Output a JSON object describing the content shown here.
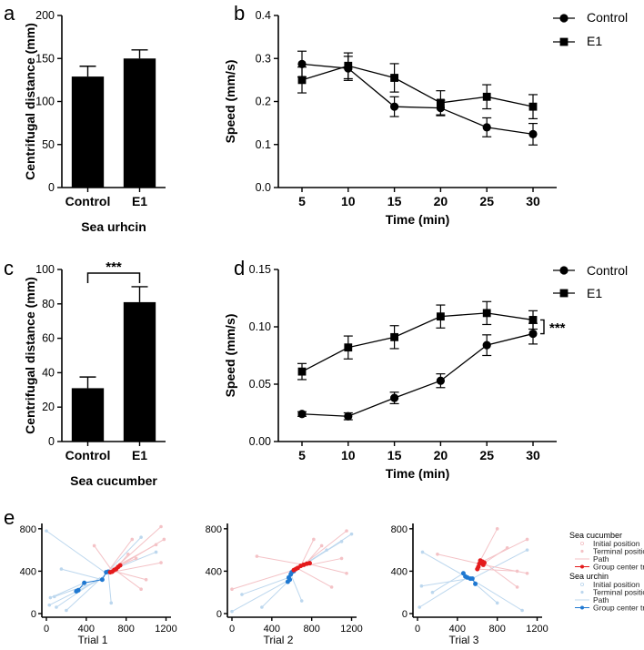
{
  "chart_data": [
    {
      "panel": "a",
      "type": "bar",
      "categories": [
        "Control",
        "E1"
      ],
      "values": [
        129,
        150
      ],
      "errors": [
        12,
        10
      ],
      "xlabel": "Sea urhcin",
      "ylabel": "Centrifugal distance (mm)",
      "ylim": [
        0,
        200
      ],
      "yticks": [
        "0",
        "50",
        "100",
        "150",
        "200"
      ],
      "color": "#000000"
    },
    {
      "panel": "b",
      "type": "line",
      "x": [
        5,
        10,
        15,
        20,
        25,
        30
      ],
      "xticks": [
        "5",
        "10",
        "15",
        "20",
        "25",
        "30"
      ],
      "series": [
        {
          "name": "Control",
          "marker": "circle",
          "values": [
            0.287,
            0.277,
            0.188,
            0.185,
            0.14,
            0.124
          ],
          "errors": [
            0.03,
            0.028,
            0.023,
            0.018,
            0.022,
            0.025
          ]
        },
        {
          "name": "E1",
          "marker": "square",
          "values": [
            0.25,
            0.283,
            0.255,
            0.197,
            0.211,
            0.188
          ],
          "errors": [
            0.03,
            0.03,
            0.033,
            0.028,
            0.028,
            0.028
          ]
        }
      ],
      "xlabel": "Time (min)",
      "ylabel": "Speed (mm/s)",
      "ylim": [
        0,
        0.4
      ],
      "yticks": [
        "0.0",
        "0.1",
        "0.2",
        "0.3",
        "0.4"
      ],
      "legend": "top-right"
    },
    {
      "panel": "c",
      "type": "bar",
      "categories": [
        "Control",
        "E1"
      ],
      "values": [
        31,
        81
      ],
      "errors": [
        6.5,
        9
      ],
      "xlabel": "Sea cucumber",
      "ylabel": "Centrifugal distance (mm)",
      "ylim": [
        0,
        100
      ],
      "yticks": [
        "0",
        "20",
        "40",
        "60",
        "80",
        "100"
      ],
      "significance": "***",
      "color": "#000000"
    },
    {
      "panel": "d",
      "type": "line",
      "x": [
        5,
        10,
        15,
        20,
        25,
        30
      ],
      "xticks": [
        "5",
        "10",
        "15",
        "20",
        "25",
        "30"
      ],
      "series": [
        {
          "name": "Control",
          "marker": "circle",
          "values": [
            0.024,
            0.022,
            0.038,
            0.053,
            0.084,
            0.094
          ],
          "errors": [
            0.002,
            0.003,
            0.005,
            0.006,
            0.009,
            0.009
          ]
        },
        {
          "name": "E1",
          "marker": "square",
          "values": [
            0.061,
            0.082,
            0.091,
            0.109,
            0.112,
            0.106
          ],
          "errors": [
            0.007,
            0.01,
            0.01,
            0.01,
            0.01,
            0.008
          ]
        }
      ],
      "xlabel": "Time (min)",
      "ylabel": "Speed (mm/s)",
      "ylim": [
        0,
        0.15
      ],
      "yticks": [
        "0.00",
        "0.05",
        "0.10",
        "0.15"
      ],
      "significance": "***",
      "legend": "top-right"
    },
    {
      "panel": "e",
      "type": "scatter",
      "xlim": [
        0,
        1250
      ],
      "ylim": [
        0,
        850
      ],
      "xticks": [
        "0",
        "400",
        "800",
        "1200"
      ],
      "yticks": [
        "0",
        "400",
        "800"
      ],
      "colors": {
        "sea_cucumber": "#e41a1c",
        "sea_urchin": "#1f78d1",
        "cucumber_faint": "#f4c2c6",
        "urchin_faint": "#bcd7ee"
      },
      "trials": [
        {
          "title": "Trial 1",
          "cucumber_trace": [
            [
              640,
              390
            ],
            [
              660,
              395
            ],
            [
              680,
              410
            ],
            [
              700,
              420
            ],
            [
              720,
              440
            ],
            [
              740,
              455
            ]
          ],
          "urchin_trace": [
            [
              300,
              210
            ],
            [
              320,
              220
            ],
            [
              380,
              290
            ],
            [
              560,
              320
            ],
            [
              600,
              390
            ],
            [
              620,
              395
            ]
          ],
          "cucumber_paths": [
            [
              [
                700,
                430
              ],
              [
                1180,
                700
              ]
            ],
            [
              [
                650,
                420
              ],
              [
                1100,
                650
              ]
            ],
            [
              [
                690,
                410
              ],
              [
                950,
                230
              ]
            ],
            [
              [
                600,
                380
              ],
              [
                1150,
                480
              ]
            ],
            [
              [
                640,
                430
              ],
              [
                480,
                640
              ]
            ],
            [
              [
                720,
                450
              ],
              [
                820,
                560
              ]
            ],
            [
              [
                680,
                400
              ],
              [
                1000,
                320
              ]
            ],
            [
              [
                700,
                440
              ],
              [
                1150,
                820
              ]
            ],
            [
              [
                660,
                420
              ],
              [
                900,
                520
              ]
            ],
            [
              [
                620,
                400
              ],
              [
                860,
                700
              ]
            ]
          ],
          "urchin_paths": [
            [
              [
                560,
                330
              ],
              [
                30,
                80
              ]
            ],
            [
              [
                600,
                380
              ],
              [
                0,
                780
              ]
            ],
            [
              [
                500,
                300
              ],
              [
                80,
                160
              ]
            ],
            [
              [
                580,
                360
              ],
              [
                200,
                30
              ]
            ],
            [
              [
                600,
                390
              ],
              [
                1100,
                580
              ]
            ],
            [
              [
                620,
                395
              ],
              [
                650,
                100
              ]
            ],
            [
              [
                380,
                290
              ],
              [
                40,
                150
              ]
            ],
            [
              [
                560,
                320
              ],
              [
                150,
                420
              ]
            ],
            [
              [
                590,
                370
              ],
              [
                950,
                720
              ]
            ],
            [
              [
                540,
                340
              ],
              [
                100,
                60
              ]
            ]
          ]
        },
        {
          "title": "Trial 2",
          "cucumber_trace": [
            [
              620,
              410
            ],
            [
              640,
              420
            ],
            [
              660,
              430
            ],
            [
              690,
              450
            ],
            [
              720,
              460
            ],
            [
              750,
              470
            ],
            [
              780,
              475
            ]
          ],
          "urchin_trace": [
            [
              560,
              300
            ],
            [
              580,
              320
            ],
            [
              570,
              340
            ],
            [
              590,
              370
            ],
            [
              600,
              390
            ],
            [
              620,
              400
            ]
          ],
          "cucumber_paths": [
            [
              [
                700,
                450
              ],
              [
                1150,
                780
              ]
            ],
            [
              [
                650,
                430
              ],
              [
                1000,
                250
              ]
            ],
            [
              [
                720,
                460
              ],
              [
                250,
                540
              ]
            ],
            [
              [
                680,
                440
              ],
              [
                1100,
                520
              ]
            ],
            [
              [
                740,
                470
              ],
              [
                900,
                640
              ]
            ],
            [
              [
                620,
                410
              ],
              [
                0,
                230
              ]
            ],
            [
              [
                760,
                470
              ],
              [
                1150,
                380
              ]
            ],
            [
              [
                690,
                450
              ],
              [
                820,
                700
              ]
            ]
          ],
          "urchin_paths": [
            [
              [
                580,
                320
              ],
              [
                0,
                20
              ]
            ],
            [
              [
                600,
                380
              ],
              [
                1200,
                750
              ]
            ],
            [
              [
                570,
                340
              ],
              [
                100,
                180
              ]
            ],
            [
              [
                620,
                400
              ],
              [
                950,
                600
              ]
            ],
            [
              [
                560,
                300
              ],
              [
                300,
                60
              ]
            ],
            [
              [
                590,
                370
              ],
              [
                700,
                120
              ]
            ],
            [
              [
                600,
                390
              ],
              [
                1100,
                680
              ]
            ]
          ]
        },
        {
          "title": "Trial 3",
          "cucumber_trace": [
            [
              600,
              420
            ],
            [
              610,
              440
            ],
            [
              620,
              470
            ],
            [
              630,
              500
            ],
            [
              650,
              490
            ],
            [
              670,
              480
            ],
            [
              660,
              460
            ]
          ],
          "urchin_trace": [
            [
              460,
              380
            ],
            [
              480,
              350
            ],
            [
              500,
              340
            ],
            [
              530,
              330
            ],
            [
              550,
              330
            ],
            [
              580,
              280
            ]
          ],
          "cucumber_paths": [
            [
              [
                620,
                470
              ],
              [
                200,
                560
              ]
            ],
            [
              [
                650,
                490
              ],
              [
                1100,
                700
              ]
            ],
            [
              [
                600,
                420
              ],
              [
                1000,
                400
              ]
            ],
            [
              [
                630,
                500
              ],
              [
                800,
                800
              ]
            ],
            [
              [
                660,
                460
              ],
              [
                1100,
                380
              ]
            ],
            [
              [
                610,
                440
              ],
              [
                900,
                620
              ]
            ],
            [
              [
                670,
                480
              ],
              [
                1000,
                250
              ]
            ]
          ],
          "urchin_paths": [
            [
              [
                480,
                350
              ],
              [
                50,
                580
              ]
            ],
            [
              [
                500,
                340
              ],
              [
                20,
                60
              ]
            ],
            [
              [
                530,
                330
              ],
              [
                1050,
                30
              ]
            ],
            [
              [
                550,
                330
              ],
              [
                1100,
                600
              ]
            ],
            [
              [
                580,
                280
              ],
              [
                800,
                100
              ]
            ],
            [
              [
                460,
                380
              ],
              [
                150,
                200
              ]
            ],
            [
              [
                520,
                330
              ],
              [
                40,
                260
              ]
            ]
          ]
        }
      ]
    }
  ],
  "labels": {
    "panel_a": "a",
    "panel_b": "b",
    "panel_c": "c",
    "panel_d": "d",
    "panel_e": "e",
    "legend_control": "Control",
    "legend_e1": "E1",
    "e_legend": {
      "cucumber_title": "Sea cucumber",
      "urchin_title": "Sea urchin",
      "initial": "Initial position",
      "terminal": "Terminal position",
      "path": "Path",
      "trace": "Group center trace"
    }
  }
}
